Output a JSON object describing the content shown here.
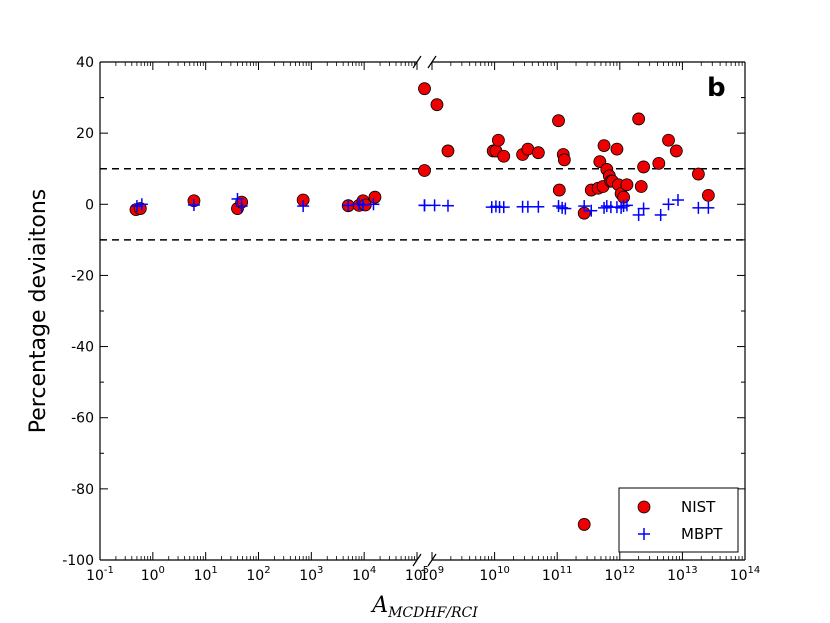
{
  "chart_data": {
    "type": "scatter",
    "panel_label": "b",
    "ylabel": "Percentage deviaitons",
    "xlabel": {
      "base": "A",
      "subscript": "MCDHF/RCI"
    },
    "x_scale": "log",
    "x_axis_break": {
      "between": [
        100000,
        1000000000
      ]
    },
    "x_segments": [
      {
        "range": [
          0.1,
          100000
        ],
        "ticks": [
          "-1",
          "0",
          "1",
          "2",
          "3",
          "4",
          "5"
        ]
      },
      {
        "range": [
          1000000000,
          100000000000000
        ],
        "ticks": [
          "9",
          "10",
          "11",
          "12",
          "13",
          "14"
        ]
      }
    ],
    "ylim": [
      -100,
      40
    ],
    "yticks": [
      "40",
      "20",
      "0",
      "-20",
      "-40",
      "-60",
      "-80",
      "-100"
    ],
    "reference_lines": [
      10,
      -10
    ],
    "legend": {
      "position": "bottom-right"
    },
    "series": [
      {
        "name": "NIST",
        "marker": "circle",
        "color": "#ee0000",
        "points": [
          [
            0.48,
            -1.5
          ],
          [
            0.58,
            -1.2
          ],
          [
            6,
            1.0
          ],
          [
            40,
            -1.2
          ],
          [
            48,
            0.6
          ],
          [
            700,
            1.2
          ],
          [
            5000,
            -0.4
          ],
          [
            8000,
            -0.3
          ],
          [
            9500,
            1.0
          ],
          [
            10500,
            -0.2
          ],
          [
            16000,
            2.0
          ],
          [
            550000000,
            32.5
          ],
          [
            800000000,
            9.5
          ],
          [
            1200000000,
            28.0
          ],
          [
            1800000000,
            15.0
          ],
          [
            9500000000,
            15.0
          ],
          [
            10500000000,
            15.0
          ],
          [
            11500000000,
            18.0
          ],
          [
            14000000000,
            13.5
          ],
          [
            28000000000,
            14.0
          ],
          [
            34000000000,
            15.5
          ],
          [
            50000000000,
            14.5
          ],
          [
            105000000000,
            23.5
          ],
          [
            108000000000,
            4.0
          ],
          [
            125000000000,
            14.0
          ],
          [
            130000000000,
            12.5
          ],
          [
            270000000000,
            -2.5
          ],
          [
            350000000000,
            4.0
          ],
          [
            450000000000,
            4.5
          ],
          [
            480000000000,
            12.0
          ],
          [
            540000000000,
            5.0
          ],
          [
            560000000000,
            16.5
          ],
          [
            620000000000,
            9.8
          ],
          [
            680000000000,
            8.0
          ],
          [
            720000000000,
            6.5
          ],
          [
            760000000000,
            6.5
          ],
          [
            900000000000,
            15.5
          ],
          [
            950000000000,
            5.5
          ],
          [
            1050000000000,
            3.0
          ],
          [
            1150000000000,
            2.0
          ],
          [
            1300000000000,
            5.5
          ],
          [
            2000000000000,
            24.0
          ],
          [
            2200000000000,
            5.0
          ],
          [
            2400000000000,
            10.5
          ],
          [
            4200000000000,
            11.5
          ],
          [
            6000000000000,
            18.0
          ],
          [
            8000000000000,
            15.0
          ],
          [
            18000000000000,
            8.5
          ],
          [
            26000000000000,
            2.5
          ],
          [
            270000000000,
            -90.0
          ]
        ]
      },
      {
        "name": "MBPT",
        "marker": "plus",
        "color": "#0000ff",
        "points": [
          [
            0.5,
            -0.5
          ],
          [
            0.62,
            0.0
          ],
          [
            6,
            -0.2
          ],
          [
            40,
            1.5
          ],
          [
            48,
            -0.5
          ],
          [
            700,
            -0.5
          ],
          [
            5000,
            -0.3
          ],
          [
            8000,
            0.1
          ],
          [
            9500,
            -0.2
          ],
          [
            15000,
            0.0
          ],
          [
            650000000,
            -0.3
          ],
          [
            800000000,
            -0.3
          ],
          [
            1100000000,
            -0.3
          ],
          [
            1800000000,
            -0.4
          ],
          [
            9000000000,
            -0.8
          ],
          [
            10500000000,
            -0.6
          ],
          [
            12000000000,
            -0.8
          ],
          [
            14000000000,
            -0.8
          ],
          [
            28000000000,
            -0.7
          ],
          [
            34000000000,
            -0.7
          ],
          [
            50000000000,
            -0.7
          ],
          [
            105000000000,
            -0.5
          ],
          [
            120000000000,
            -1.0
          ],
          [
            135000000000,
            -1.2
          ],
          [
            270000000000,
            -0.5
          ],
          [
            350000000000,
            -1.8
          ],
          [
            560000000000,
            -1.0
          ],
          [
            620000000000,
            -0.5
          ],
          [
            720000000000,
            -0.8
          ],
          [
            900000000000,
            -0.8
          ],
          [
            1050000000000,
            -1.0
          ],
          [
            1150000000000,
            -0.5
          ],
          [
            1300000000000,
            -0.3
          ],
          [
            2000000000000,
            -3.0
          ],
          [
            2400000000000,
            -1.2
          ],
          [
            4500000000000,
            -3.0
          ],
          [
            6000000000000,
            0.0
          ],
          [
            8500000000000,
            1.2
          ],
          [
            18000000000000,
            -1.0
          ],
          [
            26000000000000,
            -1.0
          ]
        ]
      }
    ]
  }
}
